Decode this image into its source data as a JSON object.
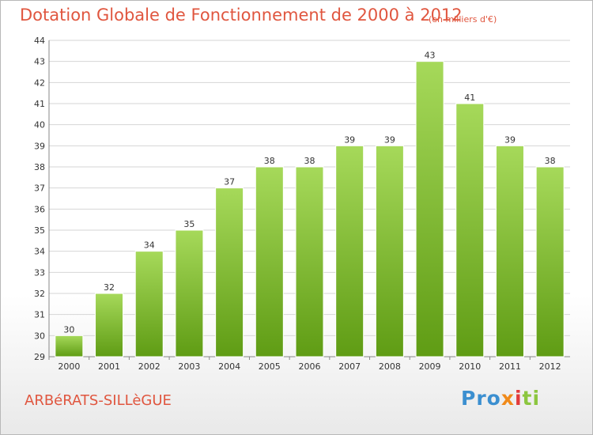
{
  "header": {
    "title": "Dotation Globale de Fonctionnement de 2000 à 2012",
    "unit": "(en milliers d'€)"
  },
  "footer": {
    "commune": "ARBéRATS-SILLèGUE",
    "logo": [
      "Pro",
      "x",
      "i",
      "ti"
    ]
  },
  "colors": {
    "accent": "#e0563f",
    "bar_top": "#a6d95a",
    "bar_bottom": "#5f9c14"
  },
  "chart_data": {
    "type": "bar",
    "categories": [
      "2000",
      "2001",
      "2002",
      "2003",
      "2004",
      "2005",
      "2006",
      "2007",
      "2008",
      "2009",
      "2010",
      "2011",
      "2012"
    ],
    "values": [
      30,
      32,
      34,
      35,
      37,
      38,
      38,
      39,
      39,
      43,
      41,
      39,
      38
    ],
    "title": "Dotation Globale de Fonctionnement de 2000 à 2012",
    "ylim": [
      29,
      44
    ],
    "yticks": [
      29,
      30,
      31,
      32,
      33,
      34,
      35,
      36,
      37,
      38,
      39,
      40,
      41,
      42,
      43,
      44
    ],
    "grid": true,
    "data_labels": true
  }
}
